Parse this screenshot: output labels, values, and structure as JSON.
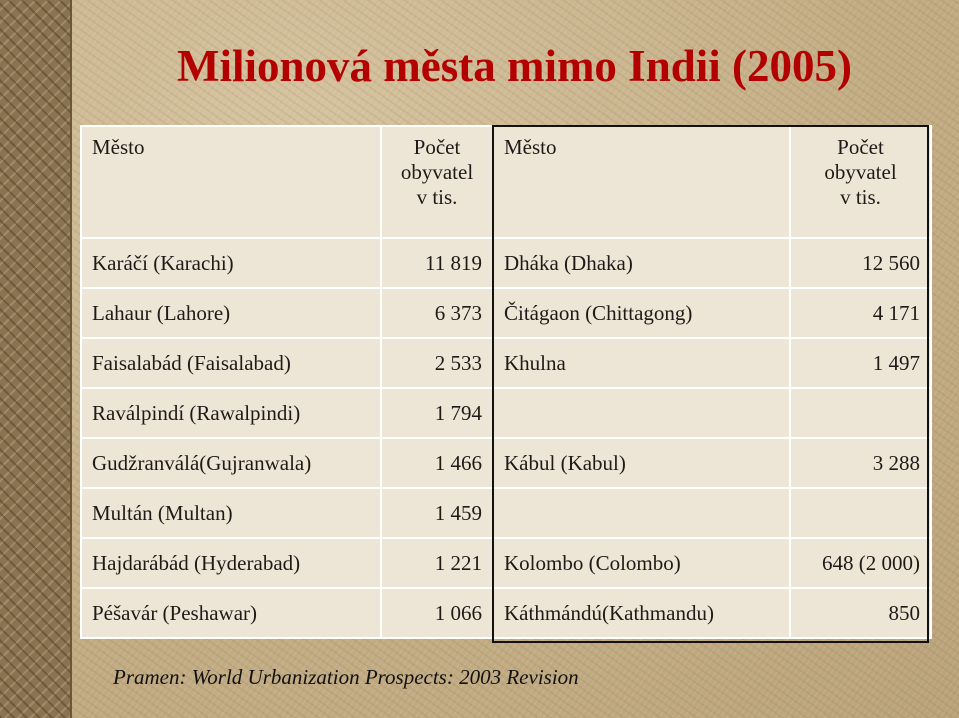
{
  "title": "Milionová města mimo Indii (2005)",
  "table": {
    "headers": {
      "city_left": "Město",
      "pop_left": [
        "Počet",
        "obyvatel",
        "v tis."
      ],
      "city_right": "Město",
      "pop_right": [
        "Počet",
        "obyvatel",
        "v tis."
      ]
    },
    "rows": [
      {
        "city_left": "Karáčí (Karachi)",
        "pop_left": "11 819",
        "city_right": "Dháka (Dhaka)",
        "pop_right": "12 560"
      },
      {
        "city_left": "Lahaur (Lahore)",
        "pop_left": "6 373",
        "city_right": "Čitágaon (Chittagong)",
        "pop_right": "4 171"
      },
      {
        "city_left": "Faisalabád (Faisalabad)",
        "pop_left": "2 533",
        "city_right": "Khulna",
        "pop_right": "1 497"
      },
      {
        "city_left": "Raválpindí (Rawalpindi)",
        "pop_left": "1 794",
        "city_right": "",
        "pop_right": ""
      },
      {
        "city_left": "Gudžranválá(Gujranwala)",
        "pop_left": "1 466",
        "city_right": "Kábul (Kabul)",
        "pop_right": "3 288"
      },
      {
        "city_left": "Multán (Multan)",
        "pop_left": "1 459",
        "city_right": "",
        "pop_right": ""
      },
      {
        "city_left": "Hajdarábád (Hyderabad)",
        "pop_left": "1 221",
        "city_right": "Kolombo (Colombo)",
        "pop_right": "648 (2 000)"
      },
      {
        "city_left": "Péšavár (Peshawar)",
        "pop_left": "1 066",
        "city_right": "Káthmándú(Kathmandu)",
        "pop_right": "850"
      }
    ]
  },
  "source": "Pramen: World Urbanization Prospects: 2003 Revision",
  "colors": {
    "title": "#b30000",
    "cell_bg": "#ede6d6",
    "grid": "#ffffff"
  }
}
